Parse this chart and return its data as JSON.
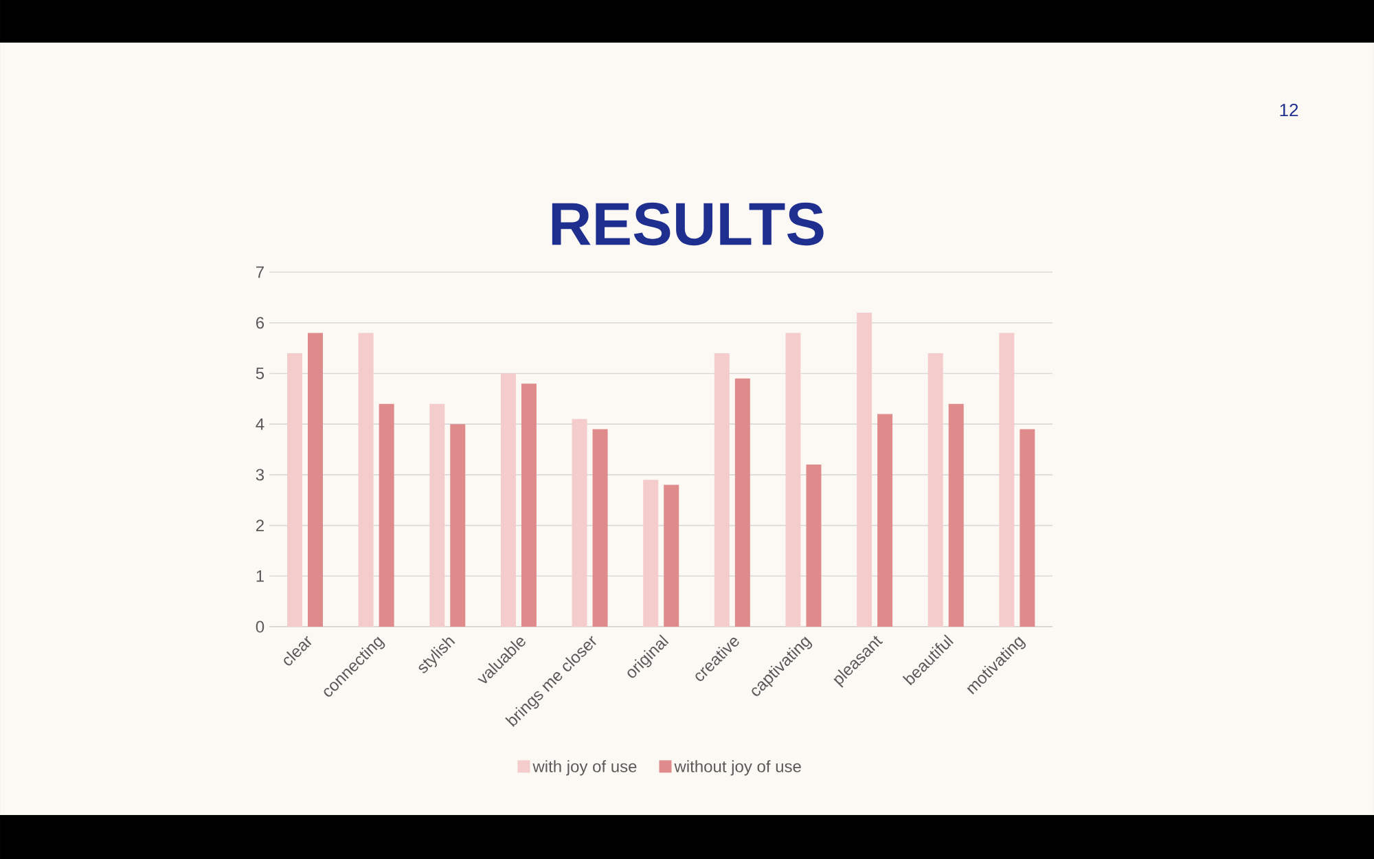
{
  "chart_data": {
    "type": "bar",
    "title": "RESULTS",
    "categories": [
      "clear",
      "connecting",
      "stylish",
      "valuable",
      "brings me closer",
      "original",
      "creative",
      "captivating",
      "pleasant",
      "beautiful",
      "motivating"
    ],
    "series": [
      {
        "name": "with joy of use",
        "color": "#f4cccc",
        "values": [
          5.4,
          5.8,
          4.4,
          5.0,
          4.1,
          2.9,
          5.4,
          5.8,
          6.2,
          5.4,
          5.8
        ]
      },
      {
        "name": "without joy of use",
        "color": "#df8b8b",
        "values": [
          5.8,
          4.4,
          4.0,
          4.8,
          3.9,
          2.8,
          4.9,
          3.2,
          4.2,
          4.4,
          3.9
        ]
      }
    ],
    "ylim": [
      0,
      7
    ],
    "yticks": [
      0,
      1,
      2,
      3,
      4,
      5,
      6,
      7
    ],
    "grid": "y",
    "legend": "bottom",
    "annotations": [
      "12"
    ]
  }
}
